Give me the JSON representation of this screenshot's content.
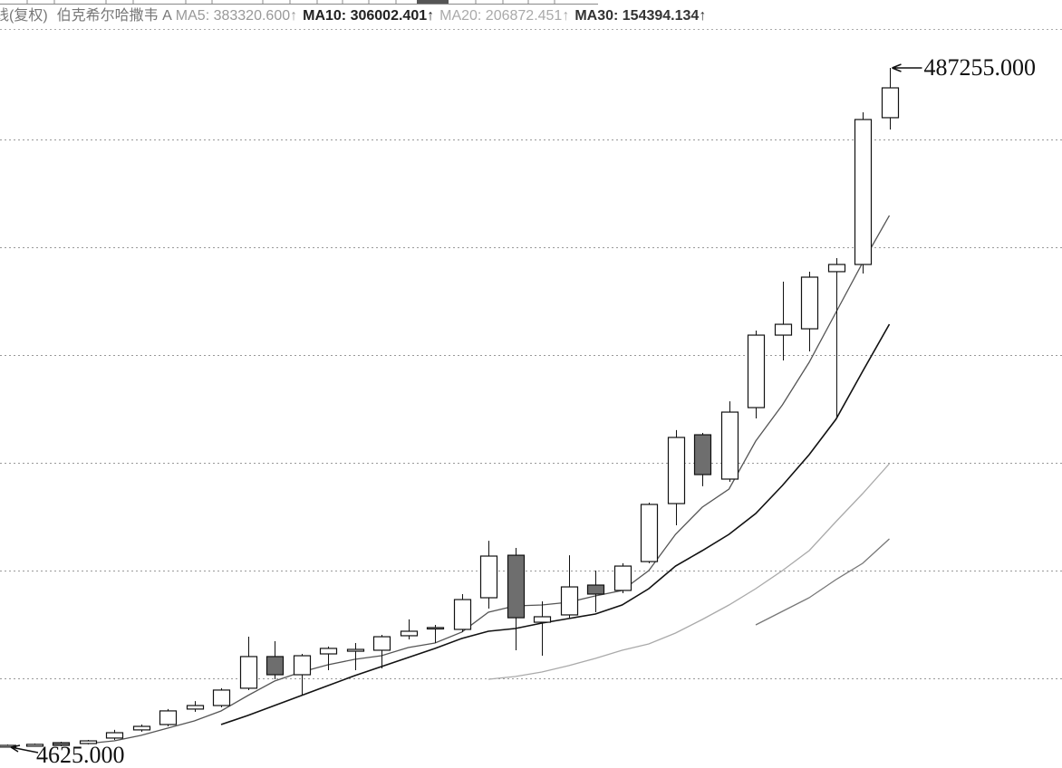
{
  "chart_data": {
    "type": "candlestick",
    "title": "线(复权)",
    "subtitle": "伯克希尔哈撒韦 A",
    "categories": [
      null,
      null,
      null,
      null,
      null,
      null,
      null,
      null,
      null,
      null,
      null,
      null,
      null,
      null,
      null,
      null,
      null,
      null,
      null,
      null,
      null,
      null,
      null,
      null,
      null,
      null,
      null,
      null,
      null,
      null,
      null,
      null,
      null,
      null
    ],
    "open": [
      4700,
      5300,
      7800,
      7200,
      11100,
      16900,
      20700,
      31700,
      34200,
      46500,
      69000,
      56100,
      70900,
      72800,
      73500,
      83800,
      88900,
      88300,
      110800,
      141000,
      93400,
      98600,
      119800,
      116000,
      136500,
      177700,
      226600,
      195100,
      245900,
      297400,
      301900,
      342500,
      347600,
      451900
    ],
    "high": [
      6500,
      7200,
      8500,
      9800,
      16900,
      20700,
      31700,
      37400,
      46500,
      83100,
      79900,
      70900,
      76100,
      78600,
      84400,
      95400,
      91500,
      113400,
      151300,
      146200,
      108200,
      141000,
      130100,
      135300,
      178400,
      229900,
      227900,
      250400,
      300600,
      335400,
      342500,
      352100,
      455700,
      487255
    ],
    "low": [
      4625,
      5000,
      5300,
      6600,
      9800,
      15600,
      19400,
      29700,
      32900,
      45200,
      52900,
      41300,
      59300,
      59300,
      60600,
      81200,
      78600,
      86400,
      103100,
      73500,
      69600,
      96600,
      100500,
      114000,
      135300,
      162300,
      190000,
      193200,
      238200,
      279400,
      285800,
      238200,
      341200,
      443500
    ],
    "close": [
      5900,
      6600,
      5900,
      9100,
      14900,
      19400,
      30400,
      34200,
      45200,
      69000,
      56100,
      69600,
      74800,
      74100,
      83100,
      87000,
      89600,
      109500,
      140400,
      96600,
      97300,
      118500,
      113400,
      133300,
      177100,
      224700,
      198300,
      242700,
      297400,
      305100,
      338600,
      347600,
      450600,
      473100
    ],
    "up_color": "#ffffff",
    "down_color": "#6e6e6e",
    "series": [
      {
        "name": "MA5: 383320.600↑",
        "color": "#555555",
        "values": [
          null,
          null,
          null,
          7200,
          9130,
          12990,
          18140,
          23290,
          30370,
          41300,
          51600,
          58030,
          63180,
          67040,
          69620,
          75410,
          78630,
          86350,
          100510,
          105010,
          105650,
          107590,
          112090,
          115950,
          130110,
          155850,
          175150,
          188020,
          222130,
          247870,
          278110,
          313510,
          348900,
          382400
        ]
      },
      {
        "name": "MA10: 306002.401↑",
        "color": "#111111",
        "values": [
          null,
          null,
          null,
          null,
          null,
          null,
          null,
          null,
          20710,
          27150,
          34230,
          41300,
          48380,
          55460,
          61900,
          68330,
          74770,
          81850,
          86990,
          88920,
          92790,
          96000,
          99220,
          105650,
          117240,
          133330,
          144270,
          155850,
          170650,
          190600,
          212480,
          237570,
          271680,
          305140
        ]
      },
      {
        "name": "MA20: 206872.451↑",
        "color": "#aaaaaa",
        "values": [
          null,
          null,
          null,
          null,
          null,
          null,
          null,
          null,
          null,
          null,
          null,
          null,
          null,
          null,
          null,
          null,
          null,
          null,
          52890,
          54820,
          58030,
          62540,
          67690,
          73480,
          77980,
          85710,
          95360,
          105650,
          117240,
          130110,
          144270,
          164860,
          184810,
          206040
        ]
      },
      {
        "name": "MA30: 154394.134↑",
        "color": "#777777",
        "values": [
          null,
          null,
          null,
          null,
          null,
          null,
          null,
          null,
          null,
          null,
          null,
          null,
          null,
          null,
          null,
          null,
          null,
          null,
          null,
          null,
          null,
          null,
          null,
          null,
          null,
          null,
          null,
          null,
          91500,
          101150,
          110800,
          123670,
          135260,
          152630
        ]
      }
    ],
    "ylim": [
      -10180,
      513000
    ],
    "yticks": [
      53500,
      130100,
      206700,
      283300,
      359900,
      436500
    ],
    "grid": true,
    "annotations": [
      {
        "text": "487255.000",
        "value": 487255,
        "index": 33
      },
      {
        "text": "4625.000",
        "value": 4625,
        "index": 0
      }
    ]
  }
}
